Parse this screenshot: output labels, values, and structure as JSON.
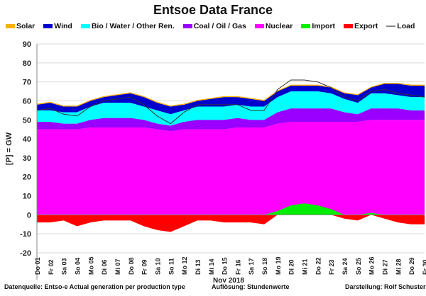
{
  "chart_data": {
    "type": "area",
    "title": "Entsoe Data France",
    "ylabel": "[P] = GW",
    "xlabel": "Nov 2018",
    "ylim": [
      -20,
      90
    ],
    "yticks": [
      -20,
      -10,
      0,
      10,
      20,
      30,
      40,
      50,
      60,
      70,
      80,
      90
    ],
    "grid": true,
    "legend_position": "top",
    "categories": [
      "Do 01",
      "Fr 02",
      "Sa 03",
      "So 04",
      "Mo 05",
      "Di 06",
      "Mi 07",
      "Do 08",
      "Fr 09",
      "Sa 10",
      "So 11",
      "Mo 12",
      "Di 13",
      "Mi 14",
      "Do 15",
      "Fr 16",
      "Sa 17",
      "So 18",
      "Mo 19",
      "Di 20",
      "Mi 21",
      "Do 22",
      "Fr 23",
      "Sa 24",
      "So 25",
      "Mo 26",
      "Di 27",
      "Mi 28",
      "Do 29",
      "Fr 30"
    ],
    "series": [
      {
        "name": "Nuclear",
        "color": "#ff00ff",
        "values": [
          45,
          45,
          45,
          45,
          46,
          46,
          46,
          46,
          46,
          45,
          44,
          45,
          45,
          45,
          45,
          46,
          46,
          46,
          48,
          49,
          49,
          49,
          49,
          49,
          49,
          50,
          50,
          50,
          50,
          50
        ]
      },
      {
        "name": "Coal / Oil / Gas",
        "color": "#9900ff",
        "values": [
          4,
          4,
          3,
          3,
          4,
          5,
          5,
          5,
          4,
          3,
          3,
          4,
          5,
          5,
          5,
          5,
          4,
          4,
          6,
          7,
          7,
          7,
          7,
          5,
          4,
          6,
          6,
          6,
          5,
          5
        ]
      },
      {
        "name": "Bio / Water / Other Ren.",
        "color": "#00ffff",
        "values": [
          6,
          6,
          6,
          6,
          7,
          8,
          8,
          8,
          7,
          7,
          6,
          6,
          7,
          7,
          7,
          7,
          7,
          7,
          8,
          9,
          9,
          9,
          8,
          7,
          6,
          8,
          8,
          7,
          7,
          7
        ]
      },
      {
        "name": "Wind",
        "color": "#0000cc",
        "values": [
          3,
          4,
          3,
          3,
          3,
          3,
          4,
          5,
          5,
          4,
          4,
          3,
          3,
          4,
          5,
          4,
          4,
          3,
          3,
          3,
          3,
          3,
          3,
          3,
          4,
          3,
          5,
          6,
          6,
          6
        ]
      },
      {
        "name": "Solar",
        "color": "#ffb000",
        "values": [
          0.5,
          0.5,
          0.5,
          0.5,
          0.5,
          0.5,
          0.5,
          0.5,
          0.5,
          0.5,
          0.5,
          0.5,
          0.5,
          0.5,
          0.5,
          0.5,
          0.5,
          0.5,
          0.5,
          0.5,
          0.5,
          0.5,
          0.5,
          0.5,
          0.5,
          0.5,
          0.5,
          0.5,
          0.5,
          0.5
        ]
      },
      {
        "name": "Import",
        "color": "#00ee00",
        "values": [
          0,
          0,
          0,
          0,
          0,
          0,
          0,
          0,
          0,
          0,
          0,
          0,
          0,
          0,
          0,
          0,
          0,
          0,
          2,
          5,
          6,
          5,
          3,
          0,
          0,
          1,
          0,
          0,
          0,
          0
        ]
      },
      {
        "name": "Export",
        "color": "#ff0000",
        "values": [
          -4,
          -4,
          -3,
          -6,
          -4,
          -3,
          -3,
          -3,
          -6,
          -8,
          -9,
          -6,
          -3,
          -3,
          -4,
          -4,
          -4,
          -5,
          0,
          0,
          0,
          0,
          0,
          -2,
          -3,
          0,
          -2,
          -4,
          -5,
          -5
        ]
      },
      {
        "name": "Load",
        "color": "#333333",
        "values": [
          55,
          56,
          53,
          52,
          57,
          60,
          61,
          62,
          58,
          52,
          48,
          54,
          58,
          58,
          58,
          58,
          55,
          55,
          66,
          71,
          71,
          70,
          67,
          62,
          60,
          65,
          66,
          64,
          63,
          62
        ]
      }
    ]
  },
  "footer": {
    "source": "Datenquelle: Entso-e Actual generation per production type",
    "resolution": "Auflösung: Stundenwerte",
    "author": "Darstellung:  Rolf Schuster"
  }
}
